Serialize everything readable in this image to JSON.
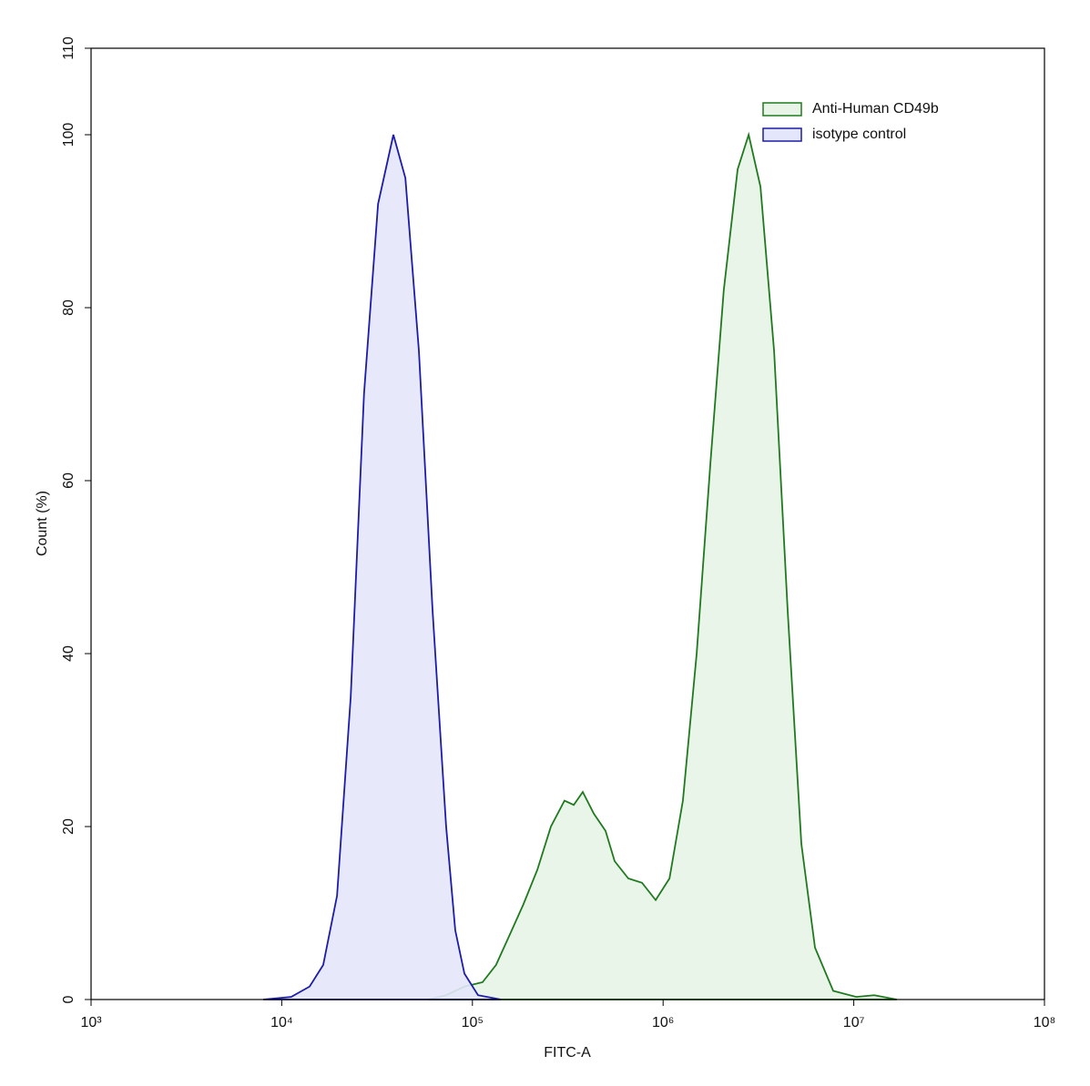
{
  "chart_data": {
    "type": "area",
    "x_label": "FITC-A",
    "y_label": "Count  (%)",
    "x_scale": "log",
    "xlim": [
      1000,
      100000000
    ],
    "xticks": [
      {
        "value": 1000,
        "label": "10³"
      },
      {
        "value": 10000,
        "label": "10⁴"
      },
      {
        "value": 100000,
        "label": "10⁵"
      },
      {
        "value": 1000000,
        "label": "10⁶"
      },
      {
        "value": 10000000,
        "label": "10⁷"
      },
      {
        "value": 100000000,
        "label": "10⁸"
      }
    ],
    "ylim": [
      0,
      110
    ],
    "yticks": [
      0,
      20,
      40,
      60,
      80,
      100,
      110
    ],
    "legend": "upper right",
    "series": [
      {
        "name": "Anti-Human CD49b",
        "color": "#1f7a1f",
        "fill_color": "#e7f4e7",
        "x": [
          58500,
          72800,
          90800,
          113000,
          133000,
          157000,
          185000,
          219000,
          258000,
          304000,
          340000,
          379000,
          433000,
          499000,
          557000,
          657000,
          775000,
          914000,
          1080000,
          1270000,
          1500000,
          1770000,
          2080000,
          2460000,
          2810000,
          3240000,
          3820000,
          4500000,
          5310000,
          6260000,
          7800000,
          10300000,
          12800000,
          16800000
        ],
        "values": [
          0,
          0.5,
          1.5,
          2,
          4,
          7.5,
          11,
          15,
          20,
          23,
          22.5,
          24,
          21.5,
          19.5,
          16,
          14,
          13.5,
          11.5,
          14,
          23,
          40,
          62,
          82,
          96,
          100,
          94,
          75,
          45,
          18,
          6,
          1,
          0.3,
          0.5,
          0
        ]
      },
      {
        "name": "isotype control",
        "color": "#1c1ca8",
        "fill_color": "#e4e7fb",
        "x": [
          8000,
          11200,
          14000,
          16500,
          19500,
          23000,
          27000,
          32000,
          38500,
          44500,
          52400,
          61800,
          72800,
          81300,
          90800,
          107000,
          141000
        ],
        "values": [
          0,
          0.3,
          1.5,
          4,
          12,
          35,
          70,
          92,
          100,
          95,
          75,
          45,
          20,
          8,
          3,
          0.5,
          0
        ]
      }
    ]
  }
}
